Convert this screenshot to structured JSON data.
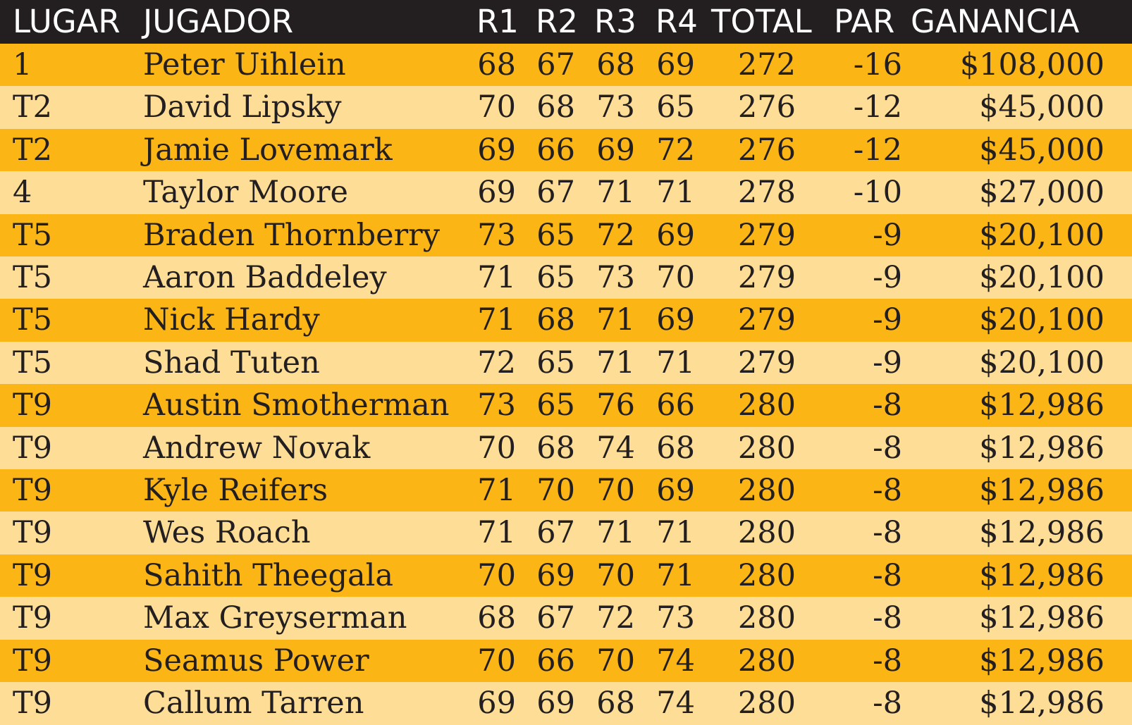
{
  "table": {
    "header": [
      "LUGAR",
      "JUGADOR",
      "R1",
      "R2",
      "R3",
      "R4",
      "TOTAL",
      "PAR",
      "GANANCIA"
    ],
    "rows": [
      [
        "1",
        "Peter Uihlein",
        "68",
        "67",
        "68",
        "69",
        "272",
        "-16",
        "$108,000"
      ],
      [
        "T2",
        "David Lipsky",
        "70",
        "68",
        "73",
        "65",
        "276",
        "-12",
        "$45,000"
      ],
      [
        "T2",
        "Jamie Lovemark",
        "69",
        "66",
        "69",
        "72",
        "276",
        "-12",
        "$45,000"
      ],
      [
        "4",
        "Taylor Moore",
        "69",
        "67",
        "71",
        "71",
        "278",
        "-10",
        "$27,000"
      ],
      [
        "T5",
        "Braden Thornberry",
        "73",
        "65",
        "72",
        "69",
        "279",
        "-9",
        "$20,100"
      ],
      [
        "T5",
        "Aaron Baddeley",
        "71",
        "65",
        "73",
        "70",
        "279",
        "-9",
        "$20,100"
      ],
      [
        "T5",
        "Nick Hardy",
        "71",
        "68",
        "71",
        "69",
        "279",
        "-9",
        "$20,100"
      ],
      [
        "T5",
        "Shad Tuten",
        "72",
        "65",
        "71",
        "71",
        "279",
        "-9",
        "$20,100"
      ],
      [
        "T9",
        "Austin Smotherman",
        "73",
        "65",
        "76",
        "66",
        "280",
        "-8",
        "$12,986"
      ],
      [
        "T9",
        "Andrew Novak",
        "70",
        "68",
        "74",
        "68",
        "280",
        "-8",
        "$12,986"
      ],
      [
        "T9",
        "Kyle Reifers",
        "71",
        "70",
        "70",
        "69",
        "280",
        "-8",
        "$12,986"
      ],
      [
        "T9",
        "Wes Roach",
        "71",
        "67",
        "71",
        "71",
        "280",
        "-8",
        "$12,986"
      ],
      [
        "T9",
        "Sahith Theegala",
        "70",
        "69",
        "70",
        "71",
        "280",
        "-8",
        "$12,986"
      ],
      [
        "T9",
        "Max Greyserman",
        "68",
        "67",
        "72",
        "73",
        "280",
        "-8",
        "$12,986"
      ],
      [
        "T9",
        "Seamus Power",
        "70",
        "66",
        "70",
        "74",
        "280",
        "-8",
        "$12,986"
      ],
      [
        "T9",
        "Callum Tarren",
        "69",
        "69",
        "68",
        "74",
        "280",
        "-8",
        "$12,986"
      ]
    ]
  }
}
